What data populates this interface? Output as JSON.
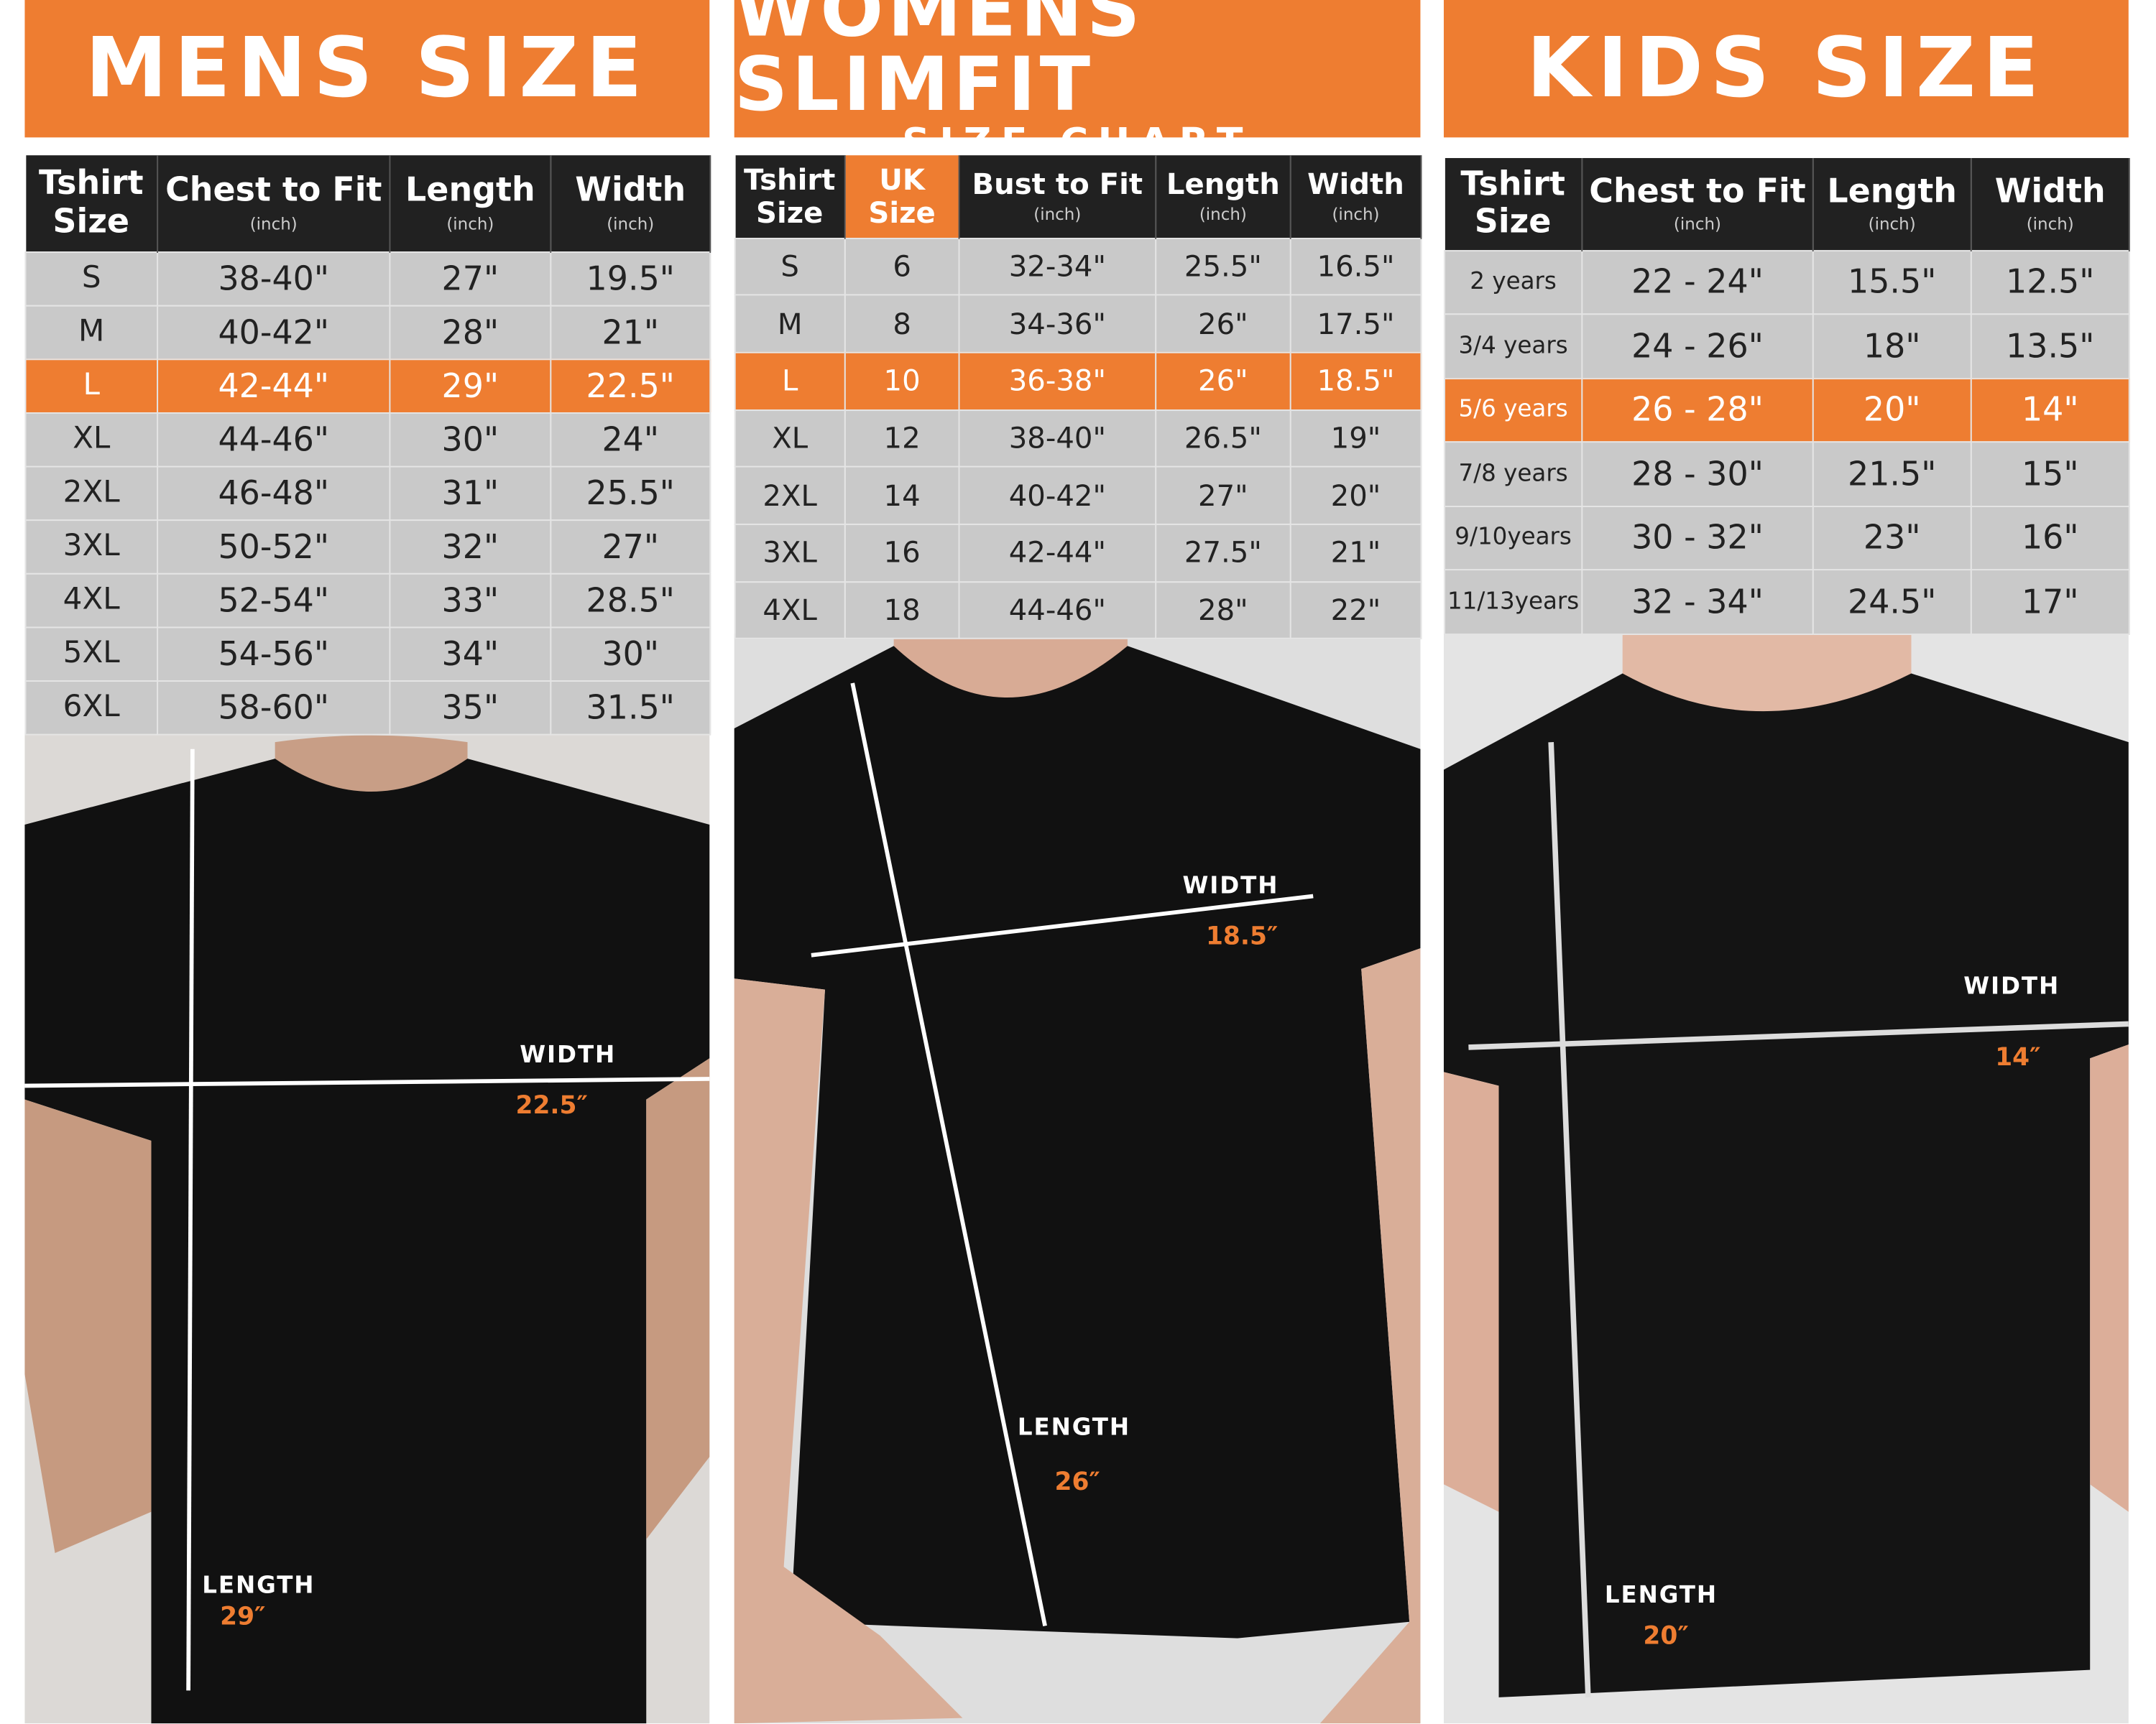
{
  "panels": [
    {
      "title": "MENS SIZE",
      "columns": [
        {
          "label": "Tshirt Size"
        },
        {
          "label": "Chest to Fit",
          "unit": "(inch)"
        },
        {
          "label": "Length",
          "unit": "(inch)"
        },
        {
          "label": "Width",
          "unit": "(inch)"
        }
      ],
      "rows": [
        [
          "S",
          "38-40\"",
          "27\"",
          "19.5\""
        ],
        [
          "M",
          "40-42\"",
          "28\"",
          "21\""
        ],
        [
          "L",
          "42-44\"",
          "29\"",
          "22.5\""
        ],
        [
          "XL",
          "44-46\"",
          "30\"",
          "24\""
        ],
        [
          "2XL",
          "46-48\"",
          "31\"",
          "25.5\""
        ],
        [
          "3XL",
          "50-52\"",
          "32\"",
          "27\""
        ],
        [
          "4XL",
          "52-54\"",
          "33\"",
          "28.5\""
        ],
        [
          "5XL",
          "54-56\"",
          "34\"",
          "30\""
        ],
        [
          "6XL",
          "58-60\"",
          "35\"",
          "31.5\""
        ]
      ],
      "highlight_row": 2,
      "measure": {
        "width_label": "WIDTH",
        "width_value": "22.5″",
        "length_label": "LENGTH",
        "length_value": "29″"
      }
    },
    {
      "title": "WOMENS SLIMFIT",
      "subtitle": "SIZE CHART",
      "columns": [
        {
          "label": "Tshirt Size"
        },
        {
          "label": "UK Size"
        },
        {
          "label": "Bust to Fit",
          "unit": "(inch)"
        },
        {
          "label": "Length",
          "unit": "(inch)"
        },
        {
          "label": "Width",
          "unit": "(inch)"
        }
      ],
      "rows": [
        [
          "S",
          "6",
          "32-34\"",
          "25.5\"",
          "16.5\""
        ],
        [
          "M",
          "8",
          "34-36\"",
          "26\"",
          "17.5\""
        ],
        [
          "L",
          "10",
          "36-38\"",
          "26\"",
          "18.5\""
        ],
        [
          "XL",
          "12",
          "38-40\"",
          "26.5\"",
          "19\""
        ],
        [
          "2XL",
          "14",
          "40-42\"",
          "27\"",
          "20\""
        ],
        [
          "3XL",
          "16",
          "42-44\"",
          "27.5\"",
          "21\""
        ],
        [
          "4XL",
          "18",
          "44-46\"",
          "28\"",
          "22\""
        ]
      ],
      "highlight_row": 2,
      "measure": {
        "width_label": "WIDTH",
        "width_value": "18.5″",
        "length_label": "LENGTH",
        "length_value": "26″"
      }
    },
    {
      "title": "KIDS SIZE",
      "columns": [
        {
          "label": "Tshirt Size"
        },
        {
          "label": "Chest to Fit",
          "unit": "(inch)"
        },
        {
          "label": "Length",
          "unit": "(inch)"
        },
        {
          "label": "Width",
          "unit": "(inch)"
        }
      ],
      "rows": [
        [
          "2 years",
          "22 - 24\"",
          "15.5\"",
          "12.5\""
        ],
        [
          "3/4 years",
          "24 - 26\"",
          "18\"",
          "13.5\""
        ],
        [
          "5/6 years",
          "26 - 28\"",
          "20\"",
          "14\""
        ],
        [
          "7/8 years",
          "28 - 30\"",
          "21.5\"",
          "15\""
        ],
        [
          "9/10years",
          "30 - 32\"",
          "23\"",
          "16\""
        ],
        [
          "11/13years",
          "32 - 34\"",
          "24.5\"",
          "17\""
        ]
      ],
      "highlight_row": 2,
      "measure": {
        "width_label": "WIDTH",
        "width_value": "14″",
        "length_label": "LENGTH",
        "length_value": "20″"
      }
    }
  ]
}
